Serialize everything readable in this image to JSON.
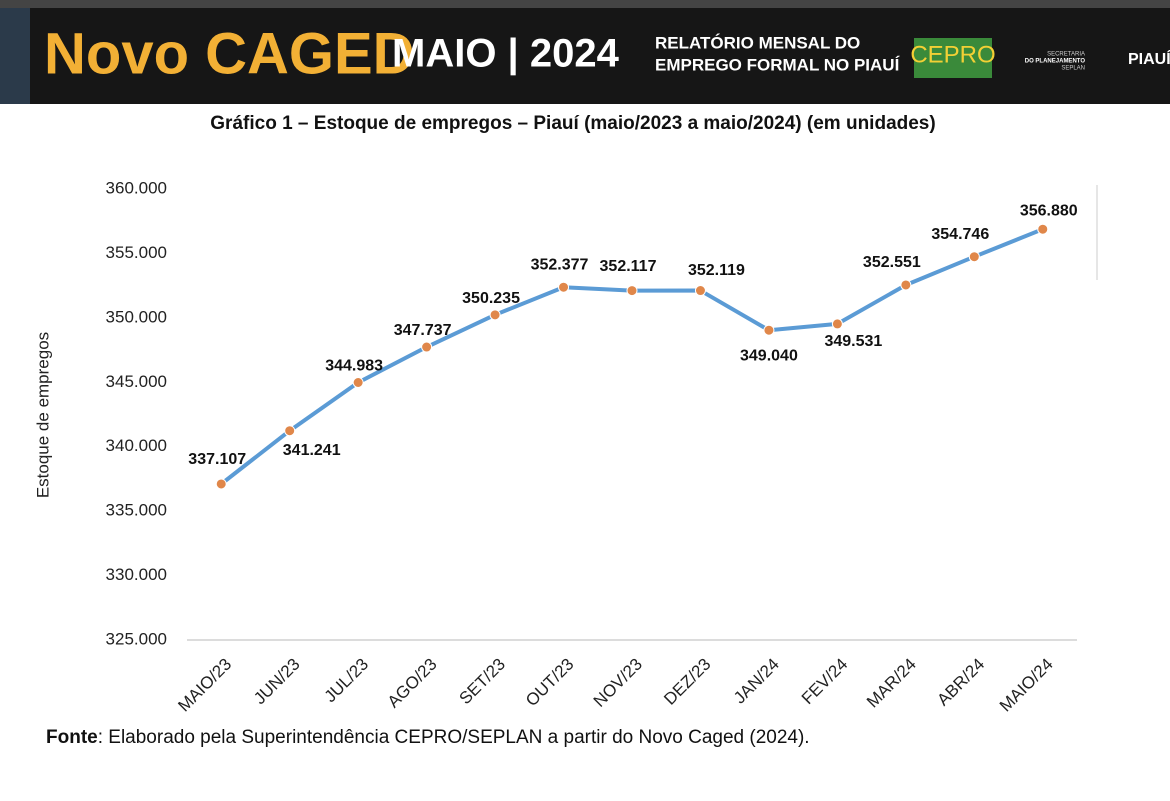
{
  "header": {
    "brand": "Novo CAGED",
    "period": "MAIO | 2024",
    "report_line1": "RELATÓRIO MENSAL DO",
    "report_line2": "EMPREGO FORMAL NO PIAUÍ",
    "logo_cepro": "CEPRO",
    "logo_secretaria": "SECRETARIA",
    "logo_planejamento": "DO PLANEJAMENTO",
    "logo_seplan": "SEPLAN",
    "logo_piaui": "PIAUÍ"
  },
  "chart_data": {
    "type": "line",
    "title": "Gráfico 1 – Estoque de empregos – Piauí (maio/2023 a maio/2024) (em unidades)",
    "y_label": "Estoque de empregos",
    "categories": [
      "MAIO/23",
      "JUN/23",
      "JUL/23",
      "AGO/23",
      "SET/23",
      "OUT/23",
      "NOV/23",
      "DEZ/23",
      "JAN/24",
      "FEV/24",
      "MAR/24",
      "ABR/24",
      "MAIO/24"
    ],
    "values": [
      337107,
      341241,
      344983,
      347737,
      350235,
      352377,
      352117,
      352119,
      349040,
      349531,
      352551,
      354746,
      356880
    ],
    "value_labels": [
      "337.107",
      "341.241",
      "344.983",
      "347.737",
      "350.235",
      "352.377",
      "352.117",
      "352.119",
      "349.040",
      "349.531",
      "352.551",
      "354.746",
      "356.880"
    ],
    "color": "#5b9bd5",
    "marker_color": "#e0874a",
    "ylim": [
      325000,
      360000
    ],
    "yticks": [
      {
        "value": 325000,
        "label": "325.000"
      },
      {
        "value": 330000,
        "label": "330.000"
      },
      {
        "value": 335000,
        "label": "335.000"
      },
      {
        "value": 340000,
        "label": "340.000"
      },
      {
        "value": 345000,
        "label": "345.000"
      },
      {
        "value": 350000,
        "label": "350.000"
      },
      {
        "value": 355000,
        "label": "355.000"
      },
      {
        "value": 360000,
        "label": "360.000"
      }
    ],
    "grid": false
  },
  "source": {
    "label": "Fonte",
    "text": ": Elaborado pela Superintendência CEPRO/SEPLAN a partir do Novo Caged (2024)."
  }
}
